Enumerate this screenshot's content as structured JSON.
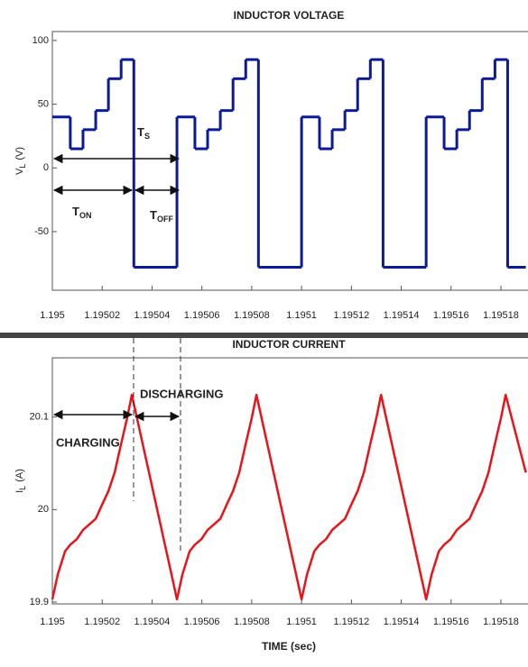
{
  "chart_data": [
    {
      "type": "line",
      "title": "INDUCTOR VOLTAGE",
      "ylabel": {
        "text": "V",
        "sub": "L",
        "unit": "(V)"
      },
      "xlim": [
        1.195,
        1.19519
      ],
      "xticks": [
        1.195,
        1.19502,
        1.19504,
        1.19506,
        1.19508,
        1.1951,
        1.19512,
        1.19514,
        1.19516,
        1.19518
      ],
      "ylim": [
        -96,
        107
      ],
      "yticks": [
        -50,
        0,
        50,
        100
      ],
      "grid": false,
      "series": [
        {
          "color": "#0b1a96",
          "step": true,
          "x": [
            1.195,
            1.1950072,
            1.1950123,
            1.1950174,
            1.1950225,
            1.1950276,
            1.1950327,
            1.19505,
            1.1950572,
            1.1950623,
            1.1950674,
            1.1950725,
            1.1950776,
            1.1950827,
            1.1951,
            1.1951072,
            1.1951123,
            1.1951174,
            1.1951225,
            1.1951276,
            1.1951327,
            1.19515,
            1.1951572,
            1.1951623,
            1.1951674,
            1.1951725,
            1.1951776,
            1.1951827
          ],
          "values": [
            40,
            15,
            30,
            45,
            70,
            85,
            -78,
            40,
            15,
            30,
            45,
            70,
            85,
            -78,
            40,
            15,
            30,
            45,
            70,
            85,
            -78,
            40,
            15,
            30,
            45,
            70,
            85,
            -78
          ]
        }
      ],
      "annotations": [
        {
          "text": "T",
          "sub": "S"
        },
        {
          "text": "T",
          "sub": "ON"
        },
        {
          "text": "T",
          "sub": "OFF"
        }
      ]
    },
    {
      "type": "line",
      "title": "INDUCTOR CURRENT",
      "xlabel": "TIME (sec)",
      "ylabel": {
        "text": "I",
        "sub": "L",
        "unit": "(A)"
      },
      "xlim": [
        1.195,
        1.19519
      ],
      "xticks": [
        1.195,
        1.19502,
        1.19504,
        1.19506,
        1.19508,
        1.1951,
        1.19512,
        1.19514,
        1.19516,
        1.19518
      ],
      "ylim": [
        19.898,
        20.164
      ],
      "yticks": [
        19.9,
        20,
        20.1
      ],
      "grid": false,
      "series": [
        {
          "color": "#e8141a",
          "x": [
            1.195,
            1.1950022,
            1.1950051,
            1.1950072,
            1.1950098,
            1.1950123,
            1.1950174,
            1.1950199,
            1.1950225,
            1.195025,
            1.1950275,
            1.1950301,
            1.1950319,
            1.19505,
            1.1950522,
            1.1950551,
            1.1950572,
            1.1950598,
            1.1950623,
            1.1950674,
            1.1950699,
            1.1950725,
            1.195075,
            1.1950775,
            1.1950801,
            1.1950819,
            1.1951,
            1.1951022,
            1.1951051,
            1.1951072,
            1.1951098,
            1.1951123,
            1.1951174,
            1.1951199,
            1.1951225,
            1.195125,
            1.1951275,
            1.1951301,
            1.1951319,
            1.19515,
            1.1951522,
            1.1951551,
            1.1951572,
            1.1951598,
            1.1951623,
            1.1951674,
            1.1951699,
            1.1951725,
            1.195175,
            1.1951775,
            1.1951801,
            1.1951819,
            1.19519
          ],
          "values": [
            19.903,
            19.93,
            19.955,
            19.962,
            19.968,
            19.978,
            19.99,
            20.005,
            20.02,
            20.04,
            20.07,
            20.1,
            20.124,
            19.903,
            19.93,
            19.955,
            19.962,
            19.968,
            19.978,
            19.99,
            20.005,
            20.02,
            20.04,
            20.07,
            20.1,
            20.124,
            19.903,
            19.93,
            19.955,
            19.962,
            19.968,
            19.978,
            19.99,
            20.005,
            20.02,
            20.04,
            20.07,
            20.1,
            20.124,
            19.903,
            19.93,
            19.955,
            19.962,
            19.968,
            19.978,
            19.99,
            20.005,
            20.02,
            20.04,
            20.07,
            20.1,
            20.124,
            20.04
          ]
        }
      ],
      "annotations": [
        {
          "text": "CHARGING"
        },
        {
          "text": "DISCHARGING"
        }
      ]
    }
  ]
}
